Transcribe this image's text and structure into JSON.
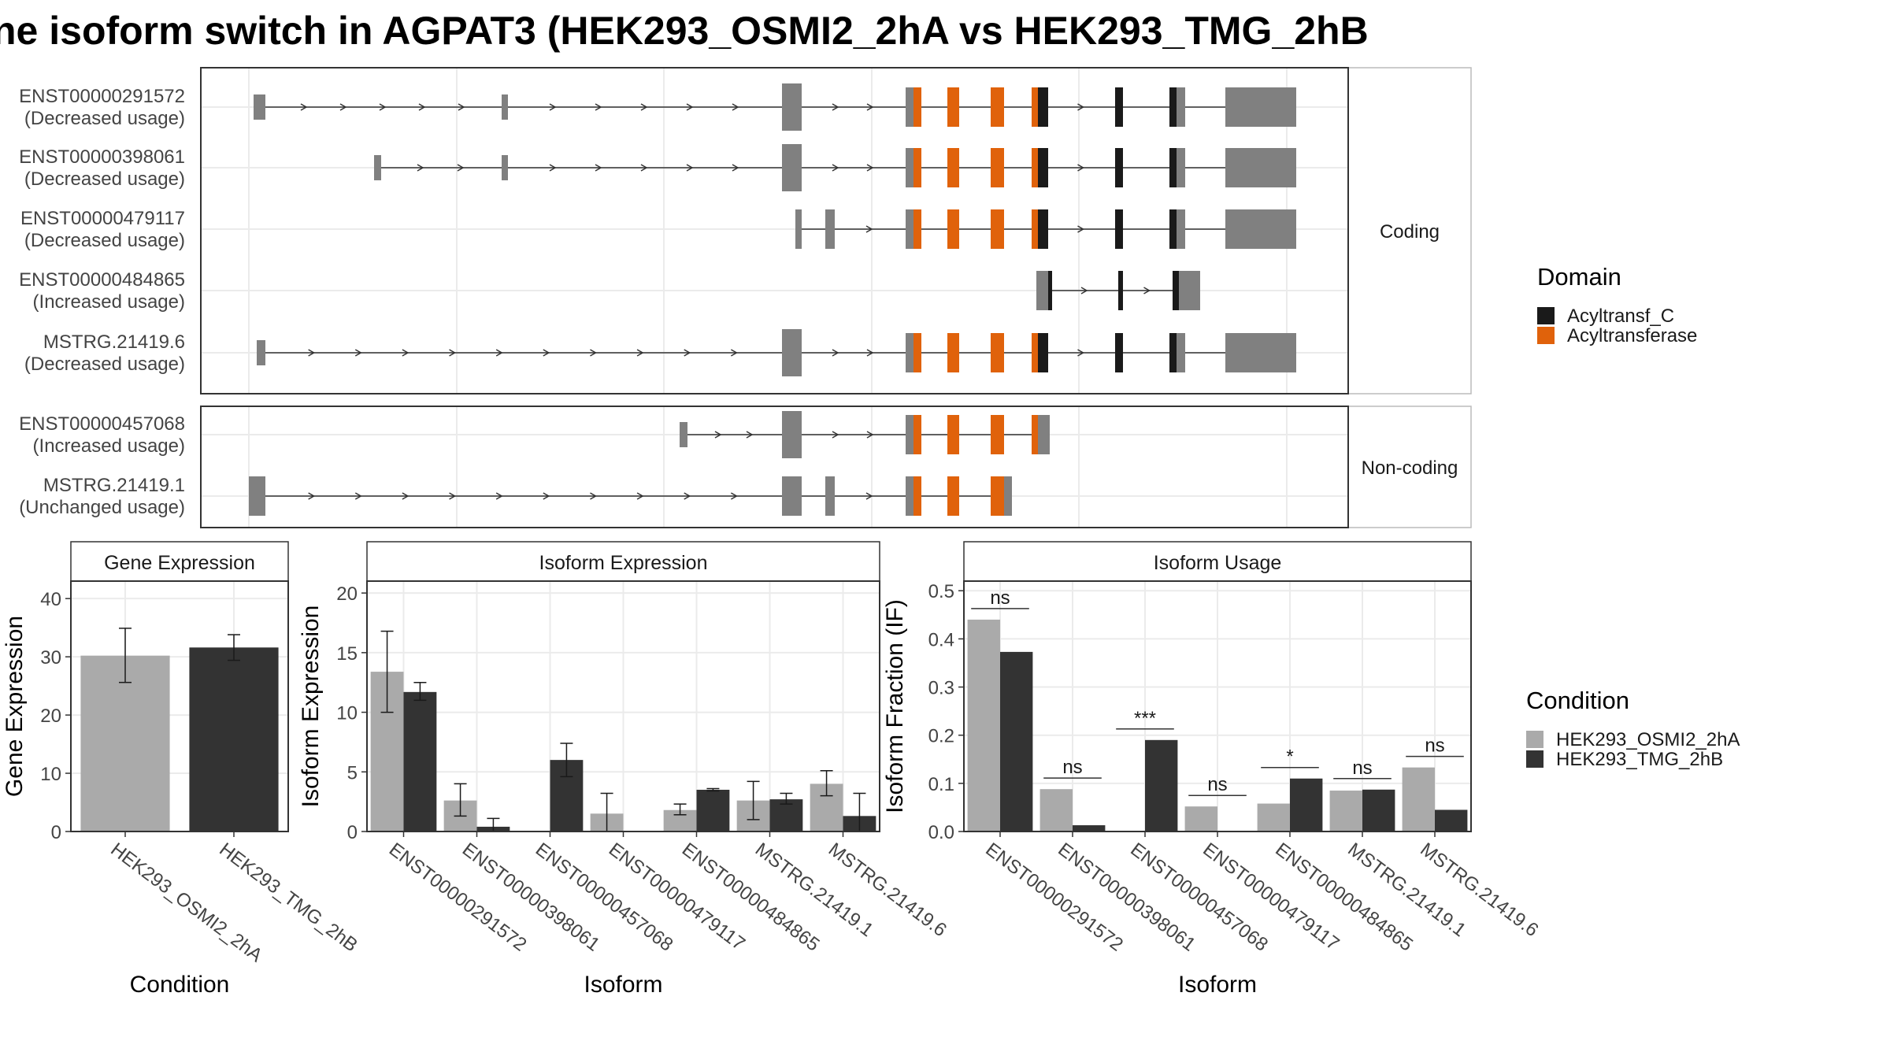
{
  "title": "ne isoform switch in AGPAT3 (HEK293_OSMI2_2hA vs HEK293_TMG_2hB",
  "legend_domain": {
    "title": "Domain",
    "items": [
      {
        "label": "Acyltransf_C",
        "color": "#1a1a1a"
      },
      {
        "label": "Acyltransferase",
        "color": "#e0620b"
      }
    ]
  },
  "legend_condition": {
    "title": "Condition",
    "items": [
      {
        "label": "HEK293_OSMI2_2hA",
        "color": "#aaaaaa"
      },
      {
        "label": "HEK293_TMG_2hB",
        "color": "#333333"
      }
    ]
  },
  "structure": {
    "colors": {
      "exon": "#808080",
      "acyltransferase": "#e0620b",
      "acyltransf_c": "#1a1a1a"
    },
    "panels": [
      {
        "label": "Coding",
        "transcripts": [
          {
            "id": "ENST00000291572",
            "usage": "(Decreased usage)"
          },
          {
            "id": "ENST00000398061",
            "usage": "(Decreased usage)"
          },
          {
            "id": "ENST00000479117",
            "usage": "(Decreased usage)"
          },
          {
            "id": "ENST00000484865",
            "usage": "(Increased usage)"
          },
          {
            "id": "MSTRG.21419.6",
            "usage": "(Decreased usage)"
          }
        ]
      },
      {
        "label": "Non-coding",
        "transcripts": [
          {
            "id": "ENST00000457068",
            "usage": "(Increased usage)"
          },
          {
            "id": "MSTRG.21419.1",
            "usage": "(Unchanged usage)"
          }
        ]
      }
    ]
  },
  "chart_data": [
    {
      "type": "bar",
      "title": "Gene Expression",
      "xlabel": "Condition",
      "ylabel": "Gene Expression",
      "ylim": [
        0,
        43
      ],
      "yticks": [
        0,
        10,
        20,
        30,
        40
      ],
      "categories": [
        "HEK293_OSMI2_2hA",
        "HEK293_TMG_2hB"
      ],
      "values": [
        30.2,
        31.6
      ],
      "errors": [
        [
          25.6,
          34.9
        ],
        [
          29.4,
          33.8
        ]
      ]
    },
    {
      "type": "bar",
      "title": "Isoform Expression",
      "xlabel": "Isoform",
      "ylabel": "Isoform Expression",
      "ylim": [
        0,
        21
      ],
      "yticks": [
        0,
        5,
        10,
        15,
        20
      ],
      "categories": [
        "ENST00000291572",
        "ENST00000398061",
        "ENST00000457068",
        "ENST00000479117",
        "ENST00000484865",
        "MSTRG.21419.1",
        "MSTRG.21419.6"
      ],
      "series": [
        {
          "name": "HEK293_OSMI2_2hA",
          "values": [
            13.4,
            2.6,
            0.0,
            1.5,
            1.8,
            2.6,
            4.0
          ],
          "errors": [
            [
              10.0,
              16.8
            ],
            [
              1.3,
              4.0
            ],
            [
              0,
              0
            ],
            [
              0,
              3.2
            ],
            [
              1.4,
              2.3
            ],
            [
              1.0,
              4.2
            ],
            [
              3.0,
              5.1
            ]
          ]
        },
        {
          "name": "HEK293_TMG_2hB",
          "values": [
            11.7,
            0.4,
            6.0,
            0.0,
            3.5,
            2.7,
            1.3
          ],
          "errors": [
            [
              11.0,
              12.5
            ],
            [
              0,
              1.1
            ],
            [
              4.6,
              7.4
            ],
            [
              0,
              0
            ],
            [
              3.4,
              3.6
            ],
            [
              2.3,
              3.2
            ],
            [
              0,
              3.2
            ]
          ]
        }
      ]
    },
    {
      "type": "bar",
      "title": "Isoform Usage",
      "xlabel": "Isoform",
      "ylabel": "Isoform Fraction (IF)",
      "ylim": [
        0,
        0.52
      ],
      "yticks": [
        0.0,
        0.1,
        0.2,
        0.3,
        0.4,
        0.5
      ],
      "ytick_labels": [
        "0.0",
        "0.1",
        "0.2",
        "0.3",
        "0.4",
        "0.5"
      ],
      "categories": [
        "ENST00000291572",
        "ENST00000398061",
        "ENST00000457068",
        "ENST00000479117",
        "ENST00000484865",
        "MSTRG.21419.1",
        "MSTRG.21419.6"
      ],
      "series": [
        {
          "name": "HEK293_OSMI2_2hA",
          "values": [
            0.44,
            0.088,
            0.0,
            0.052,
            0.058,
            0.085,
            0.133
          ]
        },
        {
          "name": "HEK293_TMG_2hB",
          "values": [
            0.373,
            0.013,
            0.19,
            0.0,
            0.11,
            0.087,
            0.045
          ]
        }
      ],
      "significance": [
        "ns",
        "ns",
        "***",
        "ns",
        "*",
        "ns",
        "ns"
      ]
    }
  ]
}
